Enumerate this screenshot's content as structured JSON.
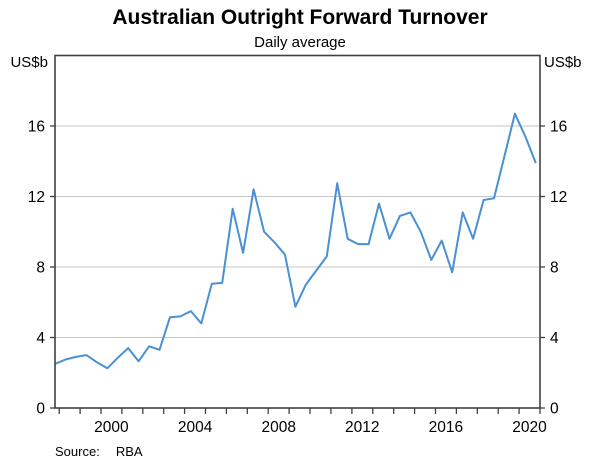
{
  "header": {
    "title": "Australian Outright Forward Turnover",
    "subtitle": "Daily average"
  },
  "axes": {
    "unit_left": "US$b",
    "unit_right": "US$b"
  },
  "source": {
    "label": "Source:",
    "value": "RBA"
  },
  "chart_data": {
    "type": "line",
    "title": "Australian Outright Forward Turnover",
    "subtitle": "Daily average",
    "ylabel": "US$b",
    "ylim": [
      0,
      20
    ],
    "yticks": [
      0,
      4,
      8,
      12,
      16
    ],
    "xlim": [
      1997.8,
      2021.0
    ],
    "xticks": [
      1998,
      1999,
      2000,
      2001,
      2002,
      2003,
      2004,
      2005,
      2006,
      2007,
      2008,
      2009,
      2010,
      2011,
      2012,
      2013,
      2014,
      2015,
      2016,
      2017,
      2018,
      2019,
      2020,
      2021
    ],
    "xlabels": [
      2000,
      2004,
      2008,
      2012,
      2016,
      2020
    ],
    "x_unit": "decimal years (.3 = April survey, .8 = October survey)",
    "grid": "horizontal gridlines at labelled ticks, full plot border box",
    "legend": "none",
    "line_color": "#4a90d2",
    "axis_color": "#414042",
    "grid_color": "#c6c6c6",
    "series": [
      {
        "name": "Outright forward turnover, daily average (US$b)",
        "x": [
          1997.8,
          1998.3,
          1998.8,
          1999.3,
          1999.8,
          2000.3,
          2000.8,
          2001.3,
          2001.8,
          2002.3,
          2002.8,
          2003.3,
          2003.8,
          2004.3,
          2004.8,
          2005.3,
          2005.8,
          2006.3,
          2006.8,
          2007.3,
          2007.8,
          2008.3,
          2008.8,
          2009.3,
          2009.8,
          2010.3,
          2010.8,
          2011.3,
          2011.8,
          2012.3,
          2012.8,
          2013.3,
          2013.8,
          2014.3,
          2014.8,
          2015.3,
          2015.8,
          2016.3,
          2016.8,
          2017.3,
          2017.8,
          2018.3,
          2018.8,
          2019.3,
          2019.8,
          2020.3,
          2020.8
        ],
        "values": [
          2.5,
          2.75,
          2.9,
          3.0,
          2.6,
          2.25,
          2.85,
          3.4,
          2.65,
          3.5,
          3.3,
          5.15,
          5.2,
          5.5,
          4.8,
          7.05,
          7.1,
          11.3,
          8.8,
          12.4,
          10.0,
          9.4,
          8.7,
          5.75,
          7.0,
          7.8,
          8.6,
          12.75,
          9.6,
          9.3,
          9.3,
          11.6,
          9.6,
          10.9,
          11.1,
          10.0,
          8.4,
          9.5,
          7.7,
          11.1,
          9.6,
          11.8,
          11.9,
          14.3,
          16.7,
          15.4,
          13.9
        ]
      }
    ]
  }
}
